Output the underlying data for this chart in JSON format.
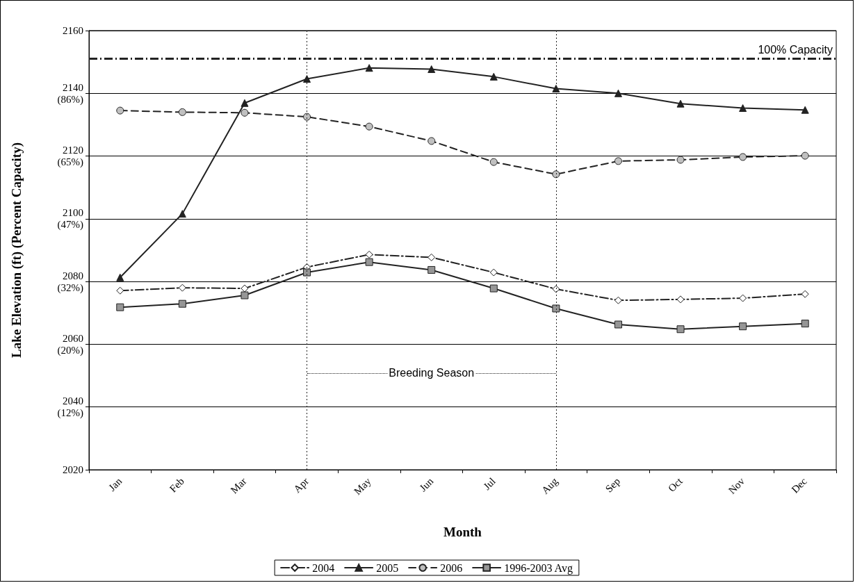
{
  "chart_data": {
    "type": "line",
    "xlabel": "Month",
    "ylabel": "Lake Elevation (ft) (Percent Capacity)",
    "categories": [
      "Jan",
      "Feb",
      "Mar",
      "Apr",
      "May",
      "Jun",
      "Jul",
      "Aug",
      "Sep",
      "Oct",
      "Nov",
      "Dec"
    ],
    "series": [
      {
        "name": "2004",
        "color": "#ffffff",
        "marker": "diamond",
        "line_style": "dashdot",
        "values": [
          2077.1,
          2078.0,
          2077.8,
          2084.6,
          2088.6,
          2087.7,
          2082.9,
          2077.6,
          2074.0,
          2074.3,
          2074.7,
          2076.0
        ]
      },
      {
        "name": "2005",
        "color": "#222222",
        "marker": "triangle",
        "line_style": "solid",
        "values": [
          2081.3,
          2101.6,
          2136.9,
          2144.6,
          2148.1,
          2147.7,
          2145.3,
          2141.5,
          2140.0,
          2136.7,
          2135.3,
          2134.7
        ]
      },
      {
        "name": "2006",
        "color": "#c0c0c0",
        "marker": "circle",
        "line_style": "dashed",
        "values": [
          2134.5,
          2134.0,
          2133.8,
          2132.5,
          2129.4,
          2124.8,
          2118.1,
          2114.2,
          2118.4,
          2118.8,
          2119.7,
          2120.1
        ]
      },
      {
        "name": "1996-2003 Avg",
        "color": "#969696",
        "marker": "square",
        "line_style": "solid",
        "values": [
          2071.8,
          2072.9,
          2075.6,
          2082.9,
          2086.2,
          2083.7,
          2077.8,
          2071.4,
          2066.3,
          2064.8,
          2065.7,
          2066.6
        ]
      }
    ],
    "ylim": [
      2020,
      2160
    ],
    "yticks": [
      2020,
      {
        "value": 2040,
        "label": "2040\n(12%)"
      },
      {
        "value": 2060,
        "label": "2060\n(20%)"
      },
      {
        "value": 2080,
        "label": "2080\n(32%)"
      },
      {
        "value": 2100,
        "label": "2100\n(47%)"
      },
      {
        "value": 2120,
        "label": "2120\n(65%)"
      },
      {
        "value": 2140,
        "label": "2140\n(86%)"
      },
      2160
    ],
    "ref_lines": [
      {
        "axis": "y",
        "value": 2151,
        "label": "100% Capacity",
        "color": "#222222",
        "line_style": "dashdot"
      },
      {
        "axis": "x",
        "value": "Apr",
        "color": "#222222",
        "line_style": "dotted"
      },
      {
        "axis": "x",
        "value": "Aug",
        "color": "#222222",
        "line_style": "dotted"
      }
    ],
    "annotations": [
      "Breeding Season"
    ],
    "grid": "y",
    "legend": "bottom"
  }
}
